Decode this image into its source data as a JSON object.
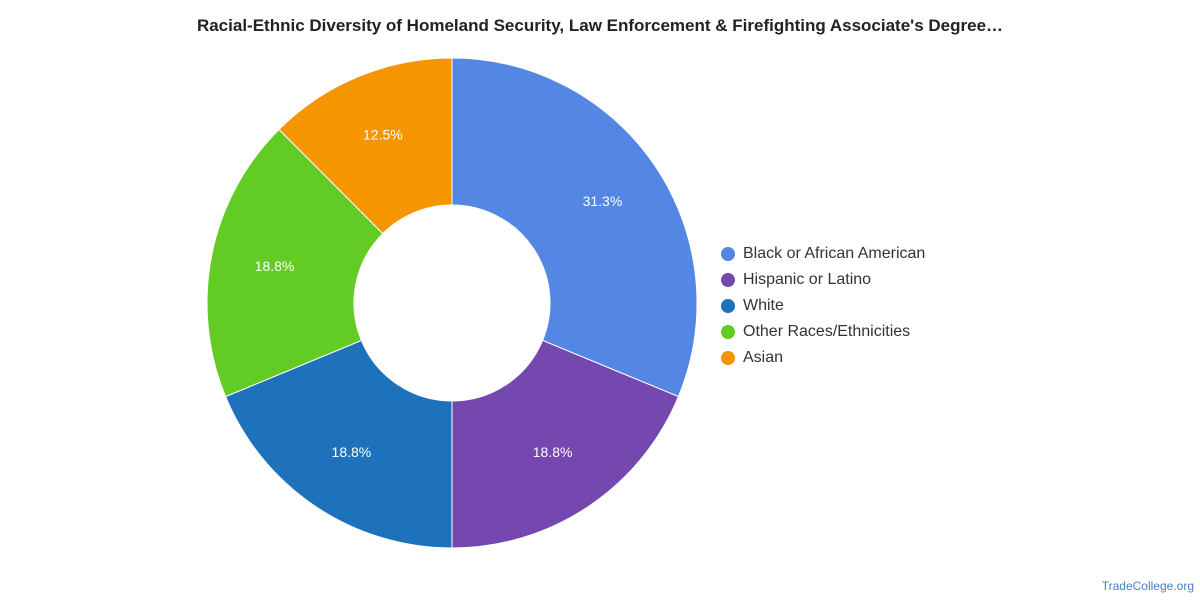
{
  "chart_data": {
    "type": "pie",
    "title": "Racial-Ethnic Diversity of Homeland Security, Law Enforcement & Firefighting Associate's Degree…",
    "donut": true,
    "legend_position": "right",
    "slices": [
      {
        "label": "Black or African American",
        "value": 31.3,
        "display": "31.3%",
        "color": "#5486e4"
      },
      {
        "label": "Hispanic or Latino",
        "value": 18.8,
        "display": "18.8%",
        "color": "#7548b0"
      },
      {
        "label": "White",
        "value": 18.8,
        "display": "18.8%",
        "color": "#1e72bc"
      },
      {
        "label": "Other Races/Ethnicities",
        "value": 18.8,
        "display": "18.8%",
        "color": "#62cc25"
      },
      {
        "label": "Asian",
        "value": 12.5,
        "display": "12.5%",
        "color": "#f59600"
      }
    ]
  },
  "footer": {
    "source": "TradeCollege.org"
  }
}
